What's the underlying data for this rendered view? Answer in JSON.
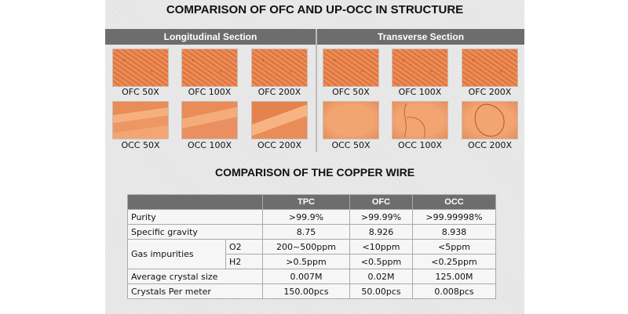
{
  "structure": {
    "title": "COMPARISON OF OFC AND UP-OCC IN STRUCTURE",
    "sections": {
      "longitudinal": "Longitudinal Section",
      "transverse": "Transverse Section"
    },
    "longitudinal_captions": {
      "ofc": [
        "OFC 50X",
        "OFC 100X",
        "OFC 200X"
      ],
      "occ": [
        "OCC 50X",
        "OCC 100X",
        "OCC 200X"
      ]
    },
    "transverse_captions": {
      "ofc": [
        "OFC 50X",
        "OFC 100X",
        "OFC 200X"
      ],
      "occ": [
        "OCC 50X",
        "OCC 100X",
        "OCC 200X"
      ]
    }
  },
  "wire": {
    "title": "COMPARISON OF THE COPPER WIRE",
    "columns": [
      "TPC",
      "OFC",
      "OCC"
    ],
    "rows": {
      "purity": {
        "label": "Purity",
        "values": [
          ">99.9%",
          ">99.99%",
          ">99.99998%"
        ]
      },
      "gravity": {
        "label": "Specific gravity",
        "values": [
          "8.75",
          "8.926",
          "8.938"
        ]
      },
      "gas": {
        "label": "Gas impurities",
        "o2": {
          "label": "O2",
          "values": [
            "200~500ppm",
            "<10ppm",
            "<5ppm"
          ]
        },
        "h2": {
          "label": "H2",
          "values": [
            ">0.5ppm",
            "<0.5ppm",
            "<0.25ppm"
          ]
        }
      },
      "crystal": {
        "label": "Average crystal size",
        "values": [
          "0.007M",
          "0.02M",
          "125.00M"
        ]
      },
      "per_meter": {
        "label": "Crystals Per meter",
        "values": [
          "150.00pcs",
          "50.00pcs",
          "0.008pcs"
        ]
      }
    }
  },
  "colors": {
    "panel": "#e4e4e4",
    "header_bar": "#6d6d6d",
    "copper": "#e98c58"
  }
}
